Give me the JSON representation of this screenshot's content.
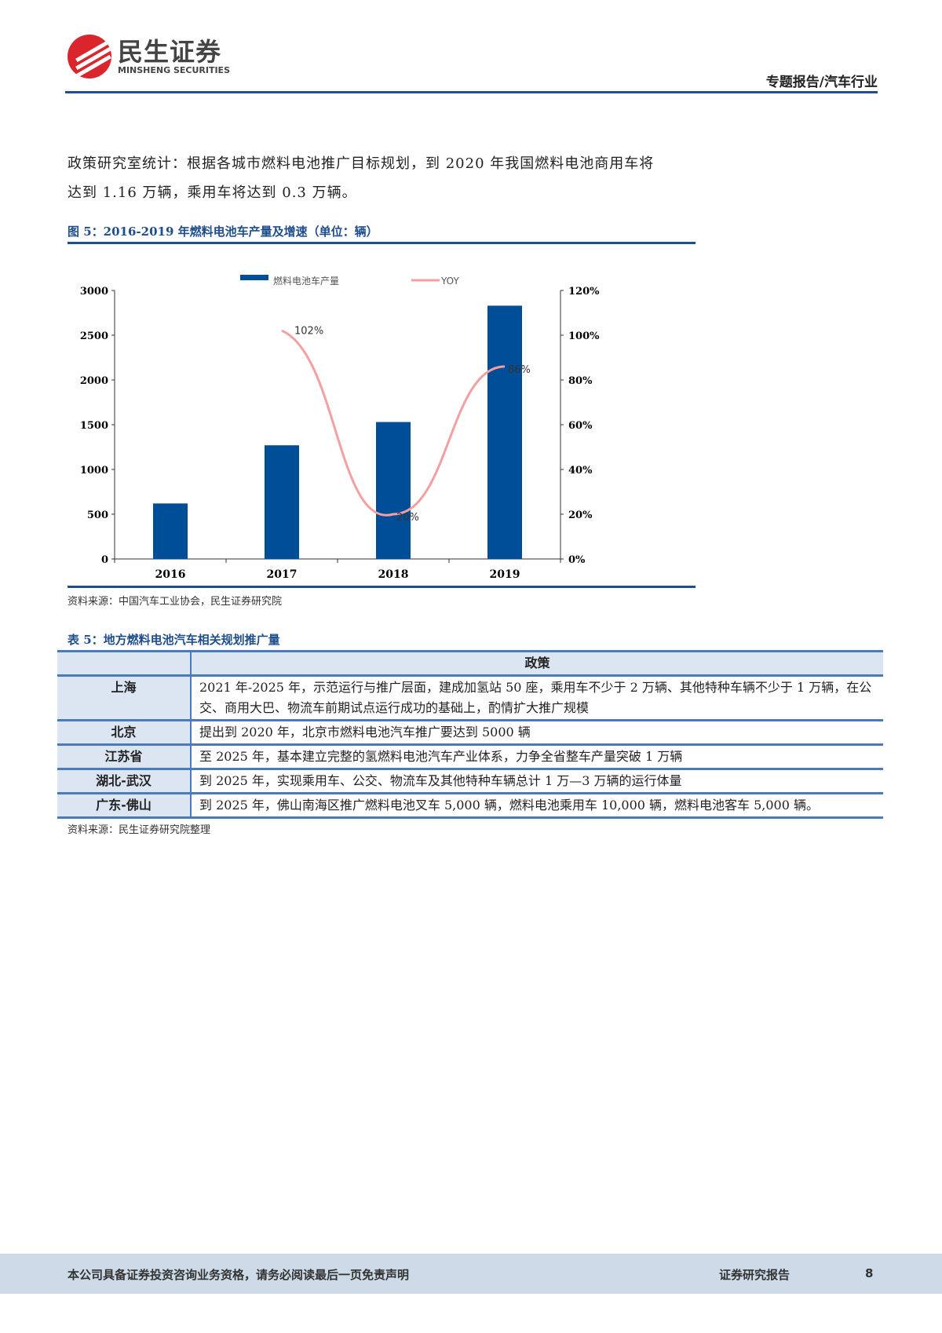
{
  "header": {
    "logo_cn": "民生证券",
    "logo_en": "MINSHENG SECURITIES",
    "category": "专题报告/汽车行业"
  },
  "body": {
    "paragraph_line1": "政策研究室统计：根据各城市燃料电池推广目标规划，到 2020 年我国燃料电池商用车将",
    "paragraph_line2": "达到 1.16 万辆，乘用车将达到 0.3 万辆。"
  },
  "figure": {
    "title": "图 5：2016-2019 年燃料电池车产量及增速（单位：辆）",
    "source": "资料来源：中国汽车工业协会，民生证券研究院"
  },
  "chart_data": {
    "type": "bar+line",
    "categories": [
      "2016",
      "2017",
      "2018",
      "2019"
    ],
    "series": [
      {
        "name": "燃料电池车产量",
        "type": "bar",
        "axis": "left",
        "color": "#004e98",
        "values": [
          620,
          1270,
          1530,
          2830
        ]
      },
      {
        "name": "YOY",
        "type": "line",
        "axis": "right",
        "color": "#f4a0a0",
        "values": [
          null,
          102,
          20,
          86
        ],
        "labels": [
          "",
          "102%",
          "20%",
          "86%"
        ]
      }
    ],
    "y_left": {
      "ticks": [
        "0",
        "500",
        "1000",
        "1500",
        "2000",
        "2500",
        "3000"
      ],
      "range": [
        0,
        3000
      ]
    },
    "y_right": {
      "ticks": [
        "0%",
        "20%",
        "40%",
        "60%",
        "80%",
        "100%",
        "120%"
      ],
      "range": [
        0,
        120
      ]
    },
    "legend": "top",
    "grid": false
  },
  "table": {
    "title": "表 5：地方燃料电池汽车相关规划推广量",
    "header": [
      "",
      "政策"
    ],
    "rows": [
      {
        "region": "上海",
        "policy": "2021 年-2025 年，示范运行与推广层面，建成加氢站 50 座，乘用车不少于 2 万辆、其他特种车辆不少于 1 万辆，在公交、商用大巴、物流车前期试点运行成功的基础上，酌情扩大推广规模"
      },
      {
        "region": "北京",
        "policy": "提出到 2020 年，北京市燃料电池汽车推广要达到 5000 辆"
      },
      {
        "region": "江苏省",
        "policy": "至 2025 年，基本建立完整的氢燃料电池汽车产业体系，力争全省整车产量突破 1 万辆"
      },
      {
        "region": "湖北-武汉",
        "policy": "到 2025 年，实现乘用车、公交、物流车及其他特种车辆总计 1 万—3 万辆的运行体量"
      },
      {
        "region": "广东-佛山",
        "policy": "到 2025 年，佛山南海区推广燃料电池叉车 5,000 辆，燃料电池乘用车 10,000 辆，燃料电池客车 5,000 辆。"
      }
    ],
    "source": "资料来源：民生证券研究院整理"
  },
  "footer": {
    "disclaimer": "本公司具备证券投资咨询业务资格，请务必阅读最后一页免责声明",
    "label": "证券研究报告",
    "page": "8"
  }
}
